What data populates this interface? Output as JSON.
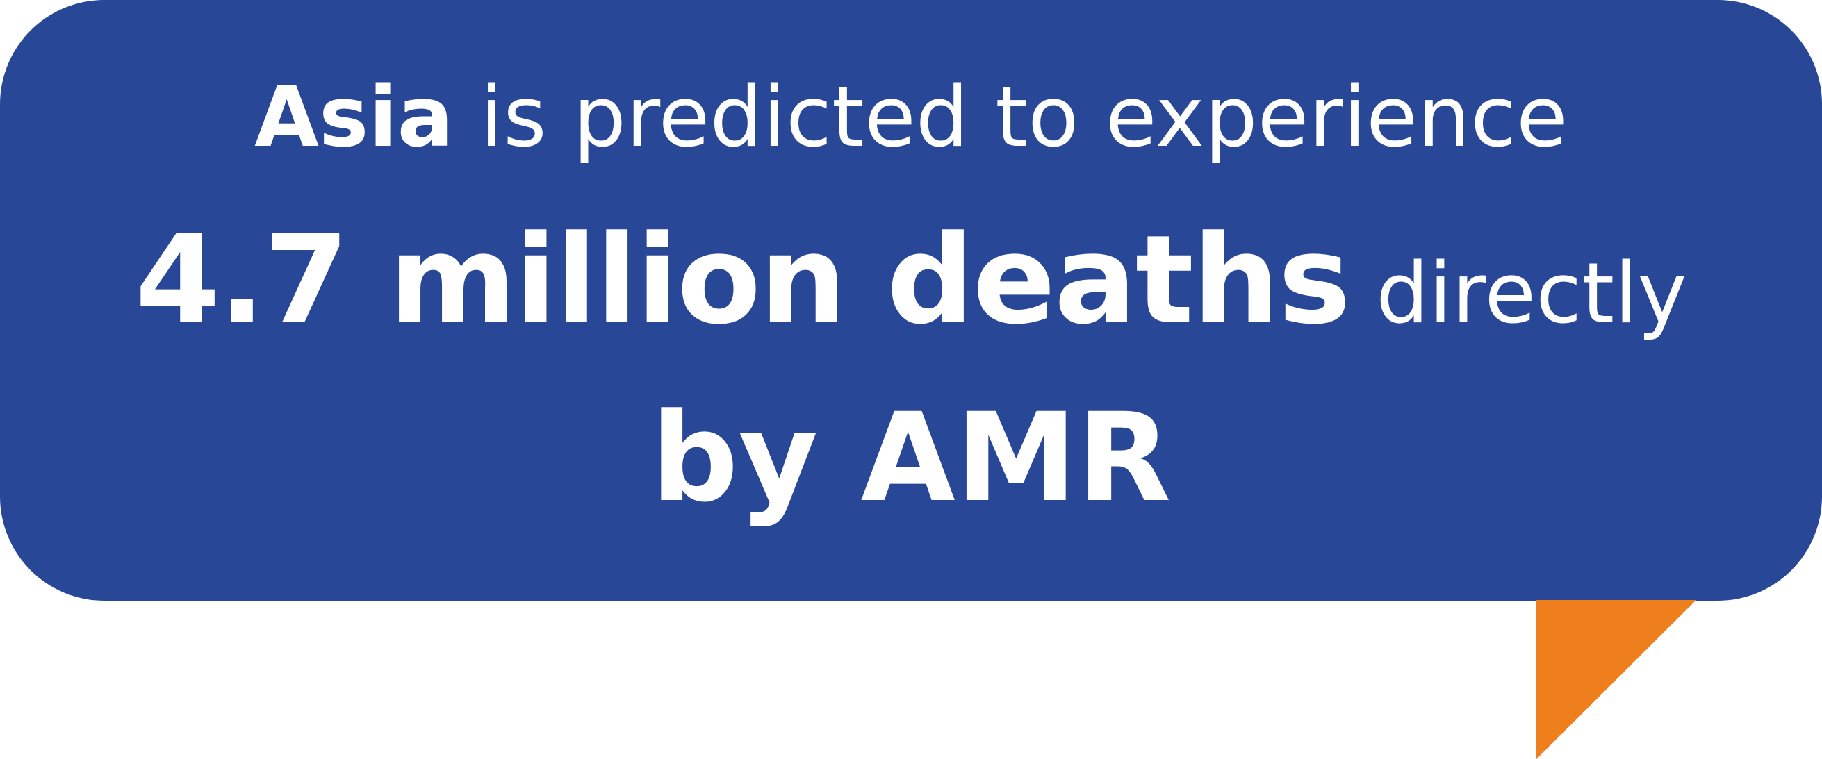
{
  "callout": {
    "line1_bold": "Asia",
    "line1_rest": " is predicted to experience",
    "line2_bold": "4.7 million deaths",
    "line2_rest": " directly",
    "line3_bold": "by AMR"
  },
  "colors": {
    "bubble": "#284796",
    "tail": "#ee7f1c",
    "text": "#ffffff"
  }
}
